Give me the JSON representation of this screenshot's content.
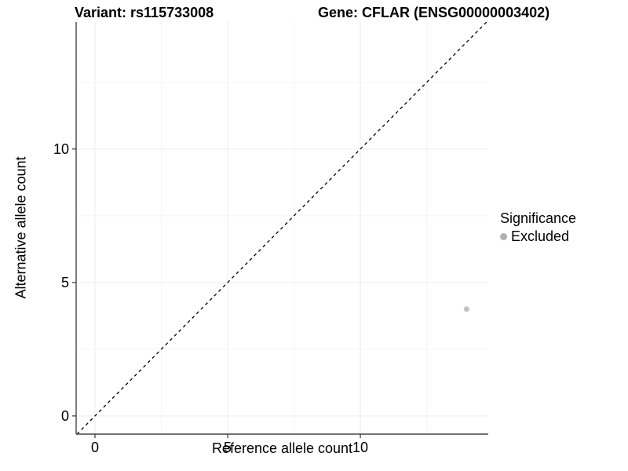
{
  "titles": {
    "variant": "Variant: rs115733008",
    "gene": "Gene: CFLAR (ENSG00000003402)"
  },
  "axes": {
    "x_label": "Reference allele count",
    "y_label": "Alternative allele count"
  },
  "legend": {
    "title": "Significance",
    "items": [
      {
        "label": "Excluded",
        "color": "#b0b0b0"
      }
    ]
  },
  "colors": {
    "background": "#ffffff",
    "axis_line": "#464646",
    "tick_mark": "#333333",
    "grid_major": "#ececec",
    "grid_minor": "#f5f5f5",
    "abline": "#000000",
    "point": "#c3c3c3",
    "text": "#000000"
  },
  "chart_data": {
    "type": "scatter",
    "title": "Variant: rs115733008   Gene: CFLAR (ENSG00000003402)",
    "xlabel": "Reference allele count",
    "ylabel": "Alternative allele count",
    "xlim": [
      -0.71,
      14.82
    ],
    "ylim": [
      -0.68,
      14.76
    ],
    "x_ticks": [
      0,
      5,
      10
    ],
    "y_ticks": [
      0,
      5,
      10
    ],
    "x_minor_ticks": [
      2.5,
      7.5,
      12.5
    ],
    "y_minor_ticks": [
      2.5,
      7.5,
      12.5
    ],
    "grid": true,
    "legend_position": "right",
    "series": [
      {
        "name": "Excluded",
        "points": [
          {
            "x": 14,
            "y": 4
          }
        ],
        "color": "#c3c3c3"
      }
    ],
    "abline": {
      "intercept": 0,
      "slope": 1,
      "linetype": "dashed",
      "color": "#000000"
    }
  }
}
